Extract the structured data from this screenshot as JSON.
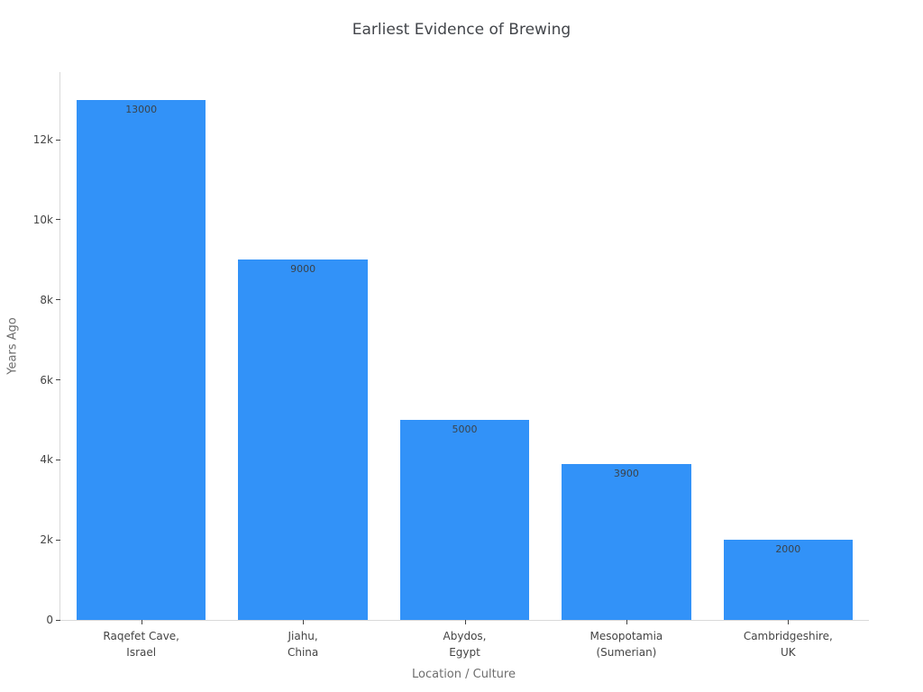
{
  "chart_data": {
    "type": "bar",
    "title": "Earliest Evidence of Brewing",
    "xlabel": "Location / Culture",
    "ylabel": "Years Ago",
    "categories": [
      "Raqefet Cave,\nIsrael",
      "Jiahu,\nChina",
      "Abydos,\nEgypt",
      "Mesopotamia\n(Sumerian)",
      "Cambridgeshire,\nUK"
    ],
    "values": [
      13000,
      9000,
      5000,
      3900,
      2000
    ],
    "bar_labels": [
      "13000",
      "9000",
      "5000",
      "3900",
      "2000"
    ],
    "ylim": [
      0,
      13690
    ],
    "yticks": [
      {
        "value": 0,
        "label": "0"
      },
      {
        "value": 2000,
        "label": "2k"
      },
      {
        "value": 4000,
        "label": "4k"
      },
      {
        "value": 6000,
        "label": "6k"
      },
      {
        "value": 8000,
        "label": "8k"
      },
      {
        "value": 10000,
        "label": "10k"
      },
      {
        "value": 12000,
        "label": "12k"
      }
    ],
    "bar_color": "#3292f8",
    "grid": false,
    "legend": "none",
    "colors": {
      "title_text": "#42454a",
      "tick_text": "#444444",
      "axis_title_text": "#6e6e6e",
      "axis_line": "#d9d9d9",
      "bar_value_text": "#3b424a"
    }
  }
}
